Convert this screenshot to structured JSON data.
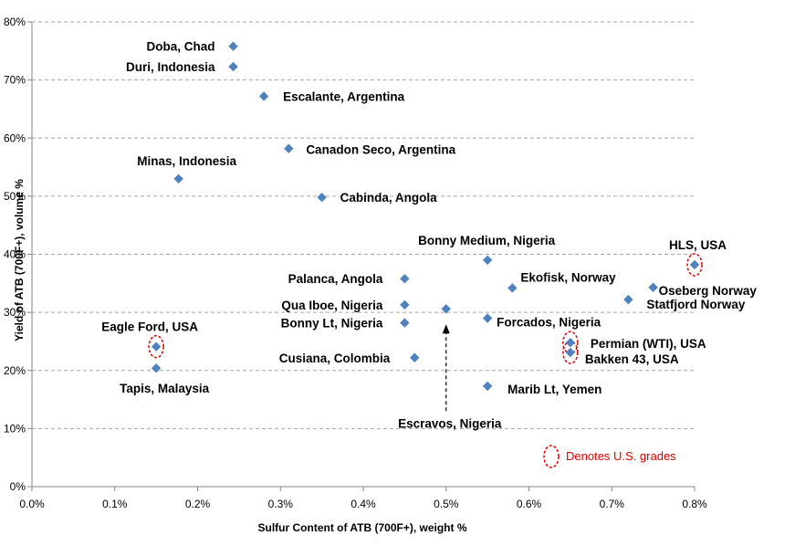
{
  "chart_data": {
    "type": "scatter",
    "xlabel": "Sulfur Content of ATB (700F+), weight %",
    "ylabel": "Yield of ATB (700F+),  volume %",
    "xlim": [
      0,
      0.8
    ],
    "ylim": [
      0,
      80
    ],
    "x_ticks": [
      "0.0%",
      "0.1%",
      "0.2%",
      "0.3%",
      "0.4%",
      "0.5%",
      "0.6%",
      "0.7%",
      "0.8%"
    ],
    "y_ticks": [
      "0%",
      "10%",
      "20%",
      "30%",
      "40%",
      "50%",
      "60%",
      "70%",
      "80%"
    ],
    "grid": "horizontal dashed",
    "marker_color": "#4f81bd",
    "points": [
      {
        "label": "Doba, Chad",
        "x": 0.243,
        "y": 75.8,
        "us": false
      },
      {
        "label": "Duri, Indonesia",
        "x": 0.243,
        "y": 72.3,
        "us": false
      },
      {
        "label": "Escalante, Argentina",
        "x": 0.28,
        "y": 67.2,
        "us": false
      },
      {
        "label": "Canadon Seco, Argentina",
        "x": 0.31,
        "y": 58.2,
        "us": false
      },
      {
        "label": "Minas, Indonesia",
        "x": 0.177,
        "y": 53.0,
        "us": false
      },
      {
        "label": "Cabinda, Angola",
        "x": 0.35,
        "y": 49.8,
        "us": false
      },
      {
        "label": "Bonny Medium, Nigeria",
        "x": 0.55,
        "y": 39.0,
        "us": false
      },
      {
        "label": "HLS, USA",
        "x": 0.8,
        "y": 38.2,
        "us": true
      },
      {
        "label": "Palanca, Angola",
        "x": 0.45,
        "y": 35.8,
        "us": false
      },
      {
        "label": "Oseberg Norway",
        "x": 0.75,
        "y": 34.3,
        "us": false
      },
      {
        "label": "Ekofisk, Norway",
        "x": 0.58,
        "y": 34.2,
        "us": false
      },
      {
        "label": "Statfjord Norway",
        "x": 0.72,
        "y": 32.2,
        "us": false
      },
      {
        "label": "Qua Iboe, Nigeria",
        "x": 0.45,
        "y": 31.3,
        "us": false
      },
      {
        "label": "Escravos, Nigeria",
        "x": 0.5,
        "y": 30.6,
        "us": false
      },
      {
        "label": "Forcados, Nigeria",
        "x": 0.55,
        "y": 29.0,
        "us": false
      },
      {
        "label": "Bonny Lt, Nigeria",
        "x": 0.45,
        "y": 28.2,
        "us": false
      },
      {
        "label": "Permian (WTI), USA",
        "x": 0.65,
        "y": 24.8,
        "us": true
      },
      {
        "label": "Eagle Ford, USA",
        "x": 0.15,
        "y": 24.1,
        "us": true
      },
      {
        "label": "Bakken 43, USA",
        "x": 0.65,
        "y": 23.1,
        "us": true
      },
      {
        "label": "Cusiana, Colombia",
        "x": 0.462,
        "y": 22.2,
        "us": false
      },
      {
        "label": "Tapis, Malaysia",
        "x": 0.15,
        "y": 20.4,
        "us": false
      },
      {
        "label": "Marib Lt, Yemen",
        "x": 0.55,
        "y": 17.3,
        "us": false
      }
    ],
    "legend_note": "Denotes U.S. grades",
    "legend_placement": "bottom-right",
    "us_highlight_color": "#e00000"
  }
}
